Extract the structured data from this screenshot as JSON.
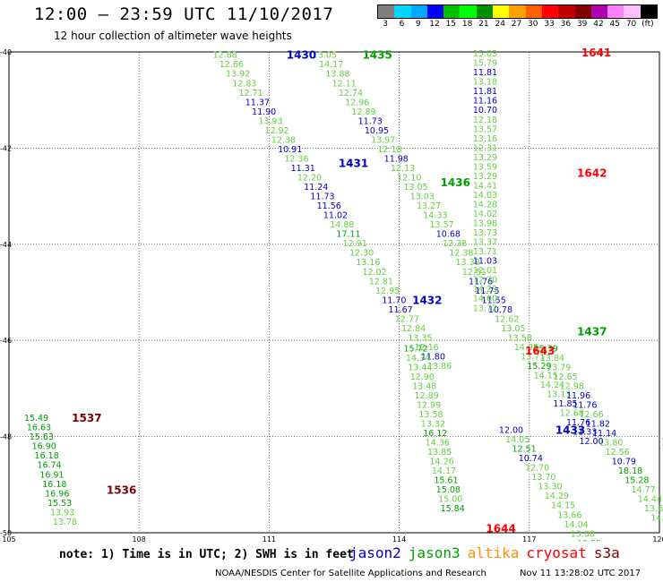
{
  "header": {
    "title": "12:00 – 23:59 UTC 11/10/2017",
    "subtitle": "12 hour collection of altimeter wave heights"
  },
  "color_scale": {
    "colors": [
      "#7f7f7f",
      "#00d5ff",
      "#00a8ff",
      "#0000ff",
      "#00c000",
      "#00ff00",
      "#009000",
      "#ffff00",
      "#ffa000",
      "#ff6000",
      "#ff0000",
      "#c00000",
      "#800000",
      "#b000b0",
      "#ff80ff",
      "#ffc0ff",
      "#000000"
    ],
    "labels": [
      "3",
      "6",
      "9",
      "12",
      "15",
      "18",
      "21",
      "24",
      "27",
      "30",
      "33",
      "36",
      "39",
      "42",
      "45",
      "70",
      "(ft)"
    ]
  },
  "map": {
    "lon_ticks": [
      "105",
      "108",
      "111",
      "114",
      "117",
      "120"
    ],
    "lat_ticks": [
      "-40",
      "-42",
      "-44",
      "-46",
      "-48",
      "-50"
    ],
    "lon_range": [
      105,
      120
    ],
    "lat_range": [
      -40,
      -50
    ],
    "grid": "dotted"
  },
  "satellite_colors": {
    "jason2": "#0000c8",
    "jason3": "#00a000",
    "light": "#60d040",
    "cryosat": "#ff0000",
    "s3a": "#800000"
  },
  "passes": [
    {
      "name": "1430",
      "color": "jason2",
      "lon": 111.4,
      "lat": -40.05
    },
    {
      "name": "1431",
      "color": "jason2",
      "lon": 112.6,
      "lat": -42.3
    },
    {
      "name": "1432",
      "color": "jason2",
      "lon": 114.3,
      "lat": -45.15
    },
    {
      "name": "1433",
      "color": "jason2",
      "lon": 117.6,
      "lat": -47.85
    },
    {
      "name": "1435",
      "color": "jason3",
      "lon": 113.15,
      "lat": -40.05
    },
    {
      "name": "1436",
      "color": "jason3",
      "lon": 114.95,
      "lat": -42.7
    },
    {
      "name": "1437",
      "color": "jason3",
      "lon": 118.1,
      "lat": -45.8
    },
    {
      "name": "1438",
      "color": "jason3",
      "lon": 120.05,
      "lat": -48.1
    },
    {
      "name": "1641",
      "color": "cryosat",
      "lon": 118.2,
      "lat": -40.0
    },
    {
      "name": "1642",
      "color": "cryosat",
      "lon": 118.1,
      "lat": -42.5
    },
    {
      "name": "1643",
      "color": "cryosat",
      "lon": 116.9,
      "lat": -46.2
    },
    {
      "name": "1644",
      "color": "cryosat",
      "lon": 116.0,
      "lat": -49.9
    },
    {
      "name": "1537",
      "color": "s3a",
      "lon": 106.45,
      "lat": -47.6
    },
    {
      "name": "1536",
      "color": "s3a",
      "lon": 107.25,
      "lat": -49.1
    }
  ],
  "tracks": [
    {
      "start": [
        109.7,
        -40.05
      ],
      "step": [
        0.15,
        -0.196
      ],
      "items": [
        [
          "12.88",
          "light"
        ],
        [
          "12.66",
          "light"
        ],
        [
          "13.92",
          "light"
        ],
        [
          "12.83",
          "light"
        ],
        [
          "12.71",
          "light"
        ],
        [
          "11.37",
          "jason2"
        ],
        [
          "11.90",
          "jason2"
        ],
        [
          "13.93",
          "light"
        ],
        [
          "12.92",
          "light"
        ],
        [
          "12.38",
          "light"
        ],
        [
          "10.91",
          "jason2"
        ],
        [
          "12.36",
          "light"
        ],
        [
          "11.31",
          "jason2"
        ],
        [
          "12.20",
          "light"
        ],
        [
          "11.24",
          "jason2"
        ],
        [
          "11.73",
          "jason2"
        ],
        [
          "11.56",
          "jason2"
        ],
        [
          "11.02",
          "jason2"
        ],
        [
          "14.88",
          "light"
        ],
        [
          "17.11",
          "jason3"
        ],
        [
          "12.91",
          "light"
        ],
        [
          "12.30",
          "light"
        ],
        [
          "13.16",
          "light"
        ],
        [
          "12.02",
          "light"
        ],
        [
          "12.81",
          "light"
        ],
        [
          "12.95",
          "light"
        ],
        [
          "11.70",
          "jason2"
        ],
        [
          "11.67",
          "jason2"
        ],
        [
          "12.77",
          "light"
        ],
        [
          "12.84",
          "light"
        ],
        [
          "13.35",
          "light"
        ],
        [
          "12.16",
          "light"
        ],
        [
          "11.80",
          "jason2"
        ],
        [
          "13.86",
          "light"
        ]
      ]
    },
    {
      "start": [
        112.0,
        -40.05
      ],
      "step": [
        0.15,
        -0.196
      ],
      "items": [
        [
          "13.05",
          "light"
        ],
        [
          "14.17",
          "light"
        ],
        [
          "13.88",
          "light"
        ],
        [
          "12.11",
          "light"
        ],
        [
          "12.74",
          "light"
        ],
        [
          "12.96",
          "light"
        ],
        [
          "12.89",
          "light"
        ],
        [
          "11.73",
          "jason2"
        ],
        [
          "10.95",
          "jason2"
        ],
        [
          "13.97",
          "light"
        ],
        [
          "12.18",
          "light"
        ],
        [
          "11.98",
          "jason2"
        ],
        [
          "12.13",
          "light"
        ],
        [
          "12.10",
          "light"
        ],
        [
          "13.05",
          "light"
        ],
        [
          "13.03",
          "light"
        ],
        [
          "13.27",
          "light"
        ],
        [
          "14.33",
          "light"
        ],
        [
          "13.57",
          "light"
        ],
        [
          "10.68",
          "jason2"
        ],
        [
          "12.38",
          "light"
        ],
        [
          "12.38",
          "light"
        ],
        [
          "13.38",
          "light"
        ],
        [
          "12.51",
          "light"
        ],
        [
          "11.76",
          "jason2"
        ],
        [
          "11.75",
          "jason2"
        ],
        [
          "11.55",
          "jason2"
        ],
        [
          "10.78",
          "jason2"
        ],
        [
          "12.62",
          "light"
        ],
        [
          "13.05",
          "light"
        ],
        [
          "13.58",
          "light"
        ],
        [
          "14.98",
          "light"
        ],
        [
          "13.71",
          "light"
        ],
        [
          "15.29",
          "jason3"
        ],
        [
          "14.15",
          "light"
        ],
        [
          "14.24",
          "light"
        ],
        [
          "13.13",
          "light"
        ],
        [
          "11.85",
          "jason2"
        ],
        [
          "12.68",
          "light"
        ],
        [
          "11.76",
          "jason2"
        ],
        [
          "11.33",
          "jason2"
        ],
        [
          "12.00",
          "jason2"
        ]
      ]
    },
    {
      "start": [
        115.7,
        -40.02
      ],
      "step": [
        0.0,
        -0.196
      ],
      "items": [
        [
          "15.03",
          "light"
        ],
        [
          "15.79",
          "light"
        ],
        [
          "11.81",
          "jason2"
        ],
        [
          "13.18",
          "light"
        ],
        [
          "11.81",
          "jason2"
        ],
        [
          "11.16",
          "jason2"
        ],
        [
          "10.70",
          "jason2"
        ],
        [
          "12.18",
          "light"
        ],
        [
          "13.57",
          "light"
        ],
        [
          "13.16",
          "light"
        ],
        [
          "12.31",
          "light"
        ],
        [
          "13.29",
          "light"
        ],
        [
          "13.59",
          "light"
        ],
        [
          "13.29",
          "light"
        ],
        [
          "14.41",
          "light"
        ],
        [
          "14.03",
          "light"
        ],
        [
          "14.28",
          "light"
        ],
        [
          "14.02",
          "light"
        ],
        [
          "13.98",
          "light"
        ],
        [
          "13.73",
          "light"
        ],
        [
          "13.37",
          "light"
        ],
        [
          "13.71",
          "light"
        ],
        [
          "11.03",
          "jason2"
        ],
        [
          "12.01",
          "light"
        ],
        [
          "12.20",
          "light"
        ],
        [
          "14.23",
          "light"
        ],
        [
          "14.00",
          "light"
        ],
        [
          "13.72",
          "light"
        ]
      ]
    },
    {
      "start": [
        114.1,
        -46.15
      ],
      "step": [
        0.05,
        -0.196
      ],
      "items": [
        [
          "15.72",
          "jason3"
        ],
        [
          "14.34",
          "light"
        ],
        [
          "13.44",
          "light"
        ],
        [
          "12.90",
          "light"
        ],
        [
          "13.48",
          "light"
        ],
        [
          "12.89",
          "light"
        ],
        [
          "12.99",
          "light"
        ],
        [
          "13.58",
          "light"
        ],
        [
          "13.32",
          "light"
        ],
        [
          "16.12",
          "jason3"
        ],
        [
          "14.36",
          "light"
        ],
        [
          "13.85",
          "light"
        ],
        [
          "14.26",
          "light"
        ],
        [
          "14.17",
          "light"
        ],
        [
          "15.61",
          "jason3"
        ],
        [
          "15.08",
          "jason3"
        ],
        [
          "15.00",
          "light"
        ],
        [
          "15.84",
          "jason3"
        ]
      ]
    },
    {
      "start": [
        116.3,
        -47.85
      ],
      "step": [
        0.15,
        -0.196
      ],
      "items": [
        [
          "12.00",
          "jason2"
        ],
        [
          "14.05",
          "light"
        ],
        [
          "12.51",
          "jason3"
        ],
        [
          "10.74",
          "jason2"
        ],
        [
          "12.70",
          "light"
        ],
        [
          "13.70",
          "light"
        ],
        [
          "13.30",
          "light"
        ],
        [
          "14.29",
          "light"
        ],
        [
          "14.15",
          "light"
        ],
        [
          "13.66",
          "light"
        ],
        [
          "14.04",
          "light"
        ],
        [
          "13.08",
          "light"
        ],
        [
          "12.55",
          "light"
        ]
      ]
    },
    {
      "start": [
        117.1,
        -46.15
      ],
      "step": [
        0.15,
        -0.196
      ],
      "items": [
        [
          "15.39",
          "jason3"
        ],
        [
          "13.84",
          "light"
        ],
        [
          "13.79",
          "light"
        ],
        [
          "12.65",
          "light"
        ],
        [
          "12.98",
          "light"
        ],
        [
          "11.96",
          "jason2"
        ],
        [
          "11.76",
          "jason2"
        ],
        [
          "12.66",
          "light"
        ],
        [
          "11.82",
          "jason2"
        ],
        [
          "11.14",
          "jason2"
        ],
        [
          "13.80",
          "light"
        ],
        [
          "12.56",
          "light"
        ],
        [
          "10.79",
          "jason2"
        ],
        [
          "18.18",
          "jason3"
        ],
        [
          "15.28",
          "jason3"
        ],
        [
          "14.77",
          "light"
        ],
        [
          "14.44",
          "light"
        ],
        [
          "13.61",
          "light"
        ],
        [
          "14.09",
          "light"
        ]
      ]
    },
    {
      "start": [
        105.35,
        -47.6
      ],
      "step": [
        0.06,
        -0.196
      ],
      "items": [
        [
          "15.49",
          "jason3"
        ],
        [
          "16.63",
          "jason3"
        ],
        [
          "15.63",
          "jason3"
        ],
        [
          "16.90",
          "jason3"
        ],
        [
          "16.18",
          "jason3"
        ],
        [
          "16.74",
          "jason3"
        ],
        [
          "16.91",
          "jason3"
        ],
        [
          "16.18",
          "jason3"
        ],
        [
          "16.96",
          "jason3"
        ],
        [
          "15.53",
          "jason3"
        ],
        [
          "13.93",
          "light"
        ],
        [
          "13.78",
          "light"
        ]
      ]
    }
  ],
  "footer": {
    "note": "note: 1) Time is in UTC; 2) SWH is in feet",
    "legend": [
      {
        "name": "jason2",
        "color": "#0000c8"
      },
      {
        "name": "jason3",
        "color": "#00a000"
      },
      {
        "name": "altika",
        "color": "#ff9000"
      },
      {
        "name": "cryosat",
        "color": "#ff0000"
      },
      {
        "name": "s3a",
        "color": "#800000"
      }
    ],
    "credit": "NOAA/NESDIS Center for Satellite Applications and Research",
    "timestamp": "Nov 11 13:28:02 UTC 2017"
  }
}
